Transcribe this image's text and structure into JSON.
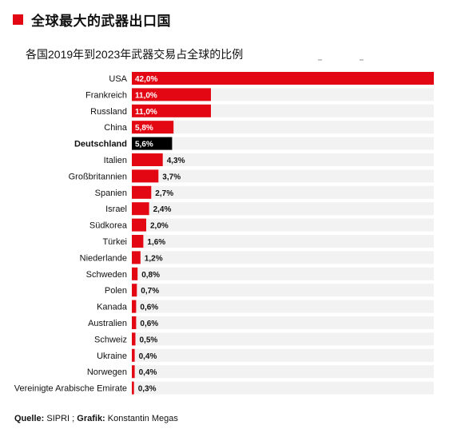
{
  "header": {
    "title": "全球最大的武器出口国",
    "subtitle": "各国2019年到2023年武器交易占全球的比例"
  },
  "footer": {
    "source_label": "Quelle:",
    "source_value": " SIPRI ; ",
    "graphic_label": "Grafik:",
    "graphic_value": " Konstantin Megas"
  },
  "chart_data": {
    "type": "bar",
    "orientation": "horizontal",
    "title": "全球最大的武器出口国",
    "subtitle": "各国2019年到2023年武器交易占全球的比例",
    "unit": "%",
    "categories": [
      "USA",
      "Frankreich",
      "Russland",
      "China",
      "Deutschland",
      "Italien",
      "Großbritannien",
      "Spanien",
      "Israel",
      "Südkorea",
      "Türkei",
      "Niederlande",
      "Schweden",
      "Polen",
      "Kanada",
      "Australien",
      "Schweiz",
      "Ukraine",
      "Norwegen",
      "Vereinigte Arabische Emirate"
    ],
    "values": [
      42.0,
      11.0,
      11.0,
      5.8,
      5.6,
      4.3,
      3.7,
      2.7,
      2.4,
      2.0,
      1.6,
      1.2,
      0.8,
      0.7,
      0.6,
      0.6,
      0.5,
      0.4,
      0.4,
      0.3
    ],
    "value_labels": [
      "42,0%",
      "11,0%",
      "11,0%",
      "5,8%",
      "5,6%",
      "4,3%",
      "3,7%",
      "2,7%",
      "2,4%",
      "2,0%",
      "1,6%",
      "1,2%",
      "0,8%",
      "0,7%",
      "0,6%",
      "0,6%",
      "0,5%",
      "0,4%",
      "0,4%",
      "0,3%"
    ],
    "highlight": "Deutschland",
    "xlim": [
      0,
      42.0
    ],
    "grid": false,
    "colors": {
      "bar": "#e30613",
      "highlight": "#000000",
      "track": "#f2f2f2",
      "label_inside": "#ffffff",
      "label_outside": "#111111"
    }
  }
}
